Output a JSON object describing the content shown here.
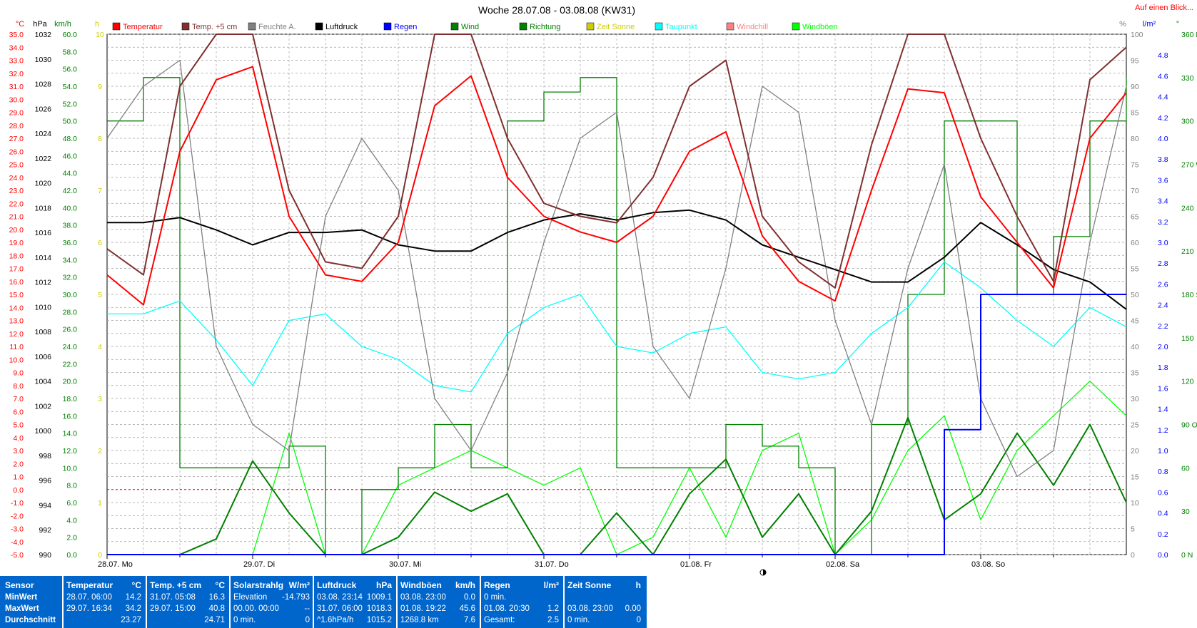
{
  "chart_data": {
    "type": "line",
    "title": "Woche 28.07.08 - 03.08.08 (KW31)",
    "corner_link": "Auf einen Blick...",
    "legend": [
      {
        "label": "Temperatur",
        "color": "#ff0000"
      },
      {
        "label": "Temp. +5 cm",
        "color": "#803030"
      },
      {
        "label": "Feuchte A.",
        "color": "#808080"
      },
      {
        "label": "Luftdruck",
        "color": "#000000"
      },
      {
        "label": "Regen",
        "color": "#0000ff"
      },
      {
        "label": "Wind",
        "color": "#008000"
      },
      {
        "label": "Richtung",
        "color": "#008000"
      },
      {
        "label": "Zeit Sonne",
        "color": "#cccc00"
      },
      {
        "label": "Taupunkt",
        "color": "#00ffff"
      },
      {
        "label": "Windchill",
        "color": "#ff8080"
      },
      {
        "label": "Windböen",
        "color": "#00ff00"
      }
    ],
    "axes_units": {
      "temp": "°C",
      "pressure": "hPa",
      "wind": "km/h",
      "sun": "h",
      "humidity": "%",
      "rain": "l/m²",
      "direction": "°"
    },
    "temp_ticks": [
      "35.0",
      "34.0",
      "33.0",
      "32.0",
      "31.0",
      "30.0",
      "29.0",
      "28.0",
      "27.0",
      "26.0",
      "25.0",
      "24.0",
      "23.0",
      "22.0",
      "21.0",
      "20.0",
      "19.0",
      "18.0",
      "17.0",
      "16.0",
      "15.0",
      "14.0",
      "13.0",
      "12.0",
      "11.0",
      "10.0",
      "9.0",
      "8.0",
      "7.0",
      "6.0",
      "5.0",
      "4.0",
      "3.0",
      "2.0",
      "1.0",
      "0.0",
      "-1.0",
      "-2.0",
      "-3.0",
      "-4.0",
      "-5.0"
    ],
    "pressure_ticks": [
      "1032",
      "1030",
      "1028",
      "1026",
      "1024",
      "1022",
      "1020",
      "1018",
      "1016",
      "1014",
      "1012",
      "1010",
      "1008",
      "1006",
      "1004",
      "1002",
      "1000",
      "998",
      "996",
      "994",
      "992",
      "990"
    ],
    "wind_ticks": [
      "60.0",
      "58.0",
      "56.0",
      "54.0",
      "52.0",
      "50.0",
      "48.0",
      "46.0",
      "44.0",
      "42.0",
      "40.0",
      "38.0",
      "36.0",
      "34.0",
      "32.0",
      "30.0",
      "28.0",
      "26.0",
      "24.0",
      "22.0",
      "20.0",
      "18.0",
      "16.0",
      "14.0",
      "12.0",
      "10.0",
      "8.0",
      "6.0",
      "4.0",
      "2.0",
      "0.0"
    ],
    "sun_ticks": [
      "10",
      "9",
      "8",
      "7",
      "6",
      "5",
      "4",
      "3",
      "2",
      "1",
      "0"
    ],
    "humidity_ticks": [
      "100",
      "95",
      "90",
      "85",
      "80",
      "75",
      "70",
      "65",
      "60",
      "55",
      "50",
      "45",
      "40",
      "35",
      "30",
      "25",
      "20",
      "15",
      "10",
      "5",
      "0"
    ],
    "rain_ticks": [
      "4.8",
      "4.6",
      "4.4",
      "4.2",
      "4.0",
      "3.8",
      "3.6",
      "3.4",
      "3.2",
      "3.0",
      "2.8",
      "2.6",
      "2.4",
      "2.2",
      "2.0",
      "1.8",
      "1.6",
      "1.4",
      "1.2",
      "1.0",
      "0.8",
      "0.6",
      "0.4",
      "0.2",
      "0.0"
    ],
    "direction_ticks": [
      "360 N",
      "330",
      "300",
      "270 W",
      "240",
      "210",
      "180 S",
      "150",
      "120",
      "90 O",
      "60",
      "30",
      "0 N"
    ],
    "day_labels": [
      "28.07. Mo",
      "29.07. Di",
      "30.07. Mi",
      "31.07. Do",
      "01.08. Fr",
      "02.08. Sa",
      "03.08. So"
    ],
    "x_hours": [
      0,
      6,
      12,
      18,
      24,
      30,
      36,
      42,
      48,
      54,
      60,
      66,
      72,
      78,
      84,
      90,
      96,
      102,
      108,
      114,
      120,
      126,
      132,
      138,
      144,
      150,
      156,
      162,
      168
    ],
    "series": [
      {
        "name": "Temperatur",
        "axis": "temp",
        "color": "#ff0000",
        "y": [
          16.5,
          14.2,
          26.0,
          31.5,
          32.5,
          21.0,
          16.5,
          16.0,
          19.0,
          29.5,
          31.8,
          24.0,
          21.0,
          19.8,
          19.0,
          21.0,
          26.0,
          27.5,
          19.5,
          16.0,
          14.5,
          23.0,
          30.8,
          30.5,
          22.5,
          19.0,
          15.5,
          27.0,
          30.5
        ]
      },
      {
        "name": "Temp. +5 cm",
        "axis": "temp",
        "color": "#803030",
        "y": [
          18.5,
          16.5,
          31.0,
          38.0,
          40.0,
          23.0,
          17.5,
          17.0,
          21.0,
          35.0,
          38.0,
          27.0,
          22.0,
          21.0,
          20.5,
          24.0,
          31.0,
          33.0,
          21.0,
          17.5,
          15.5,
          26.5,
          37.0,
          35.0,
          27.0,
          21.0,
          16.0,
          31.5,
          34.0
        ]
      },
      {
        "name": "Feuchte A.",
        "axis": "humidity",
        "color": "#808080",
        "y": [
          80,
          90,
          95,
          40,
          25,
          20,
          65,
          80,
          70,
          30,
          20,
          35,
          60,
          80,
          85,
          40,
          30,
          55,
          90,
          85,
          45,
          25,
          55,
          75,
          30,
          15,
          20,
          60,
          90
        ]
      },
      {
        "name": "Luftdruck",
        "axis": "pressure",
        "color": "#000000",
        "y": [
          1016.8,
          1016.8,
          1017.2,
          1016.2,
          1015.0,
          1016.0,
          1016.0,
          1016.2,
          1015.0,
          1014.5,
          1014.5,
          1016.0,
          1017.0,
          1017.5,
          1017.0,
          1017.6,
          1017.8,
          1017.0,
          1015.0,
          1014.0,
          1013.0,
          1012.0,
          1012.0,
          1014.0,
          1016.8,
          1015.0,
          1013.0,
          1012.0,
          1009.8
        ]
      },
      {
        "name": "Taupunkt",
        "axis": "temp",
        "color": "#00ffff",
        "y": [
          13.5,
          13.5,
          14.5,
          11.5,
          8.0,
          13.0,
          13.5,
          11.0,
          10.0,
          8.0,
          7.5,
          12.0,
          14.0,
          15.0,
          11.0,
          10.5,
          12.0,
          12.5,
          9.0,
          8.5,
          9.0,
          12.0,
          14.0,
          17.5,
          15.5,
          13.0,
          11.0,
          14.0,
          12.5
        ]
      },
      {
        "name": "Windböen",
        "axis": "wind",
        "color": "#00ff00",
        "y": [
          0,
          0,
          0,
          0,
          0,
          14,
          0,
          0,
          8,
          10,
          12,
          10,
          8,
          10,
          0,
          2,
          10,
          2,
          12,
          14,
          0,
          4,
          12,
          16,
          4,
          12,
          16,
          20,
          16
        ]
      },
      {
        "name": "Wind",
        "axis": "wind",
        "color": "#008000",
        "y": [
          0,
          0,
          0,
          1.8,
          10.8,
          4.8,
          0,
          0,
          2.0,
          7.2,
          5.0,
          7.0,
          0,
          0,
          4.8,
          0,
          7.0,
          11.0,
          2.0,
          7.0,
          0,
          5.0,
          15.8,
          4.0,
          7.0,
          14.0,
          8.0,
          15.0,
          6.0
        ]
      },
      {
        "name": "Richtung",
        "axis": "direction",
        "color": "#008000",
        "y": [
          300,
          330,
          60,
          60,
          60,
          75,
          0,
          45,
          60,
          90,
          60,
          300,
          320,
          330,
          60,
          60,
          60,
          90,
          75,
          60,
          0,
          90,
          180,
          300,
          300,
          180,
          220,
          300,
          330
        ]
      },
      {
        "name": "Regen",
        "axis": "rain",
        "color": "#0000ff",
        "y": [
          0,
          0,
          0,
          0,
          0,
          0,
          0,
          0,
          0,
          0,
          0,
          0,
          0,
          0,
          0,
          0,
          0,
          0,
          0,
          0,
          0,
          0,
          0,
          1.2,
          2.5,
          2.5,
          2.5,
          2.5,
          2.5
        ]
      }
    ],
    "zero_line_temp": 0,
    "grid": true
  },
  "summary": {
    "sensor": {
      "title": "Sensor",
      "rows": [
        "MinWert",
        "MaxWert",
        "Durchschnitt"
      ]
    },
    "temperatur": {
      "title": "Temperatur",
      "unit": "°C",
      "rows": [
        [
          "28.07.  06:00",
          "14.2"
        ],
        [
          "29.07.  16:34",
          "34.2"
        ],
        [
          "",
          "23.27"
        ]
      ]
    },
    "temp5": {
      "title": "Temp. +5 cm",
      "unit": "°C",
      "rows": [
        [
          "31.07.  05:08",
          "16.3"
        ],
        [
          "29.07.  15:00",
          "40.8"
        ],
        [
          "",
          "24.71"
        ]
      ]
    },
    "solar": {
      "title": "Solarstrahlg",
      "unit": "W/m²",
      "rows": [
        [
          "Elevation",
          "-14.793"
        ],
        [
          "00.00.  00:00",
          "--"
        ],
        [
          "0 min.",
          "0"
        ]
      ]
    },
    "luftdruck": {
      "title": "Luftdruck",
      "unit": "hPa",
      "rows": [
        [
          "03.08.  23:14",
          "1009.1"
        ],
        [
          "31.07.  06:00",
          "1018.3"
        ],
        [
          "^1.6hPa/h",
          "1015.2"
        ]
      ]
    },
    "windboeen": {
      "title": "Windböen",
      "unit": "km/h",
      "rows": [
        [
          "03.08.  23:00",
          "0.0"
        ],
        [
          "01.08.  19:22",
          "45.6"
        ],
        [
          "1268.8 km",
          "7.6"
        ]
      ]
    },
    "regen": {
      "title": "Regen",
      "unit": "l/m²",
      "rows": [
        [
          "0 min.",
          ""
        ],
        [
          "01.08.  20:30",
          "1.2"
        ],
        [
          "Gesamt:",
          "2.5"
        ]
      ]
    },
    "sonne": {
      "title": "Zeit Sonne",
      "unit": "h",
      "rows": [
        [
          "",
          ""
        ],
        [
          "03.08.  23:00",
          "0.00"
        ],
        [
          "0 min.",
          "0"
        ]
      ]
    }
  }
}
